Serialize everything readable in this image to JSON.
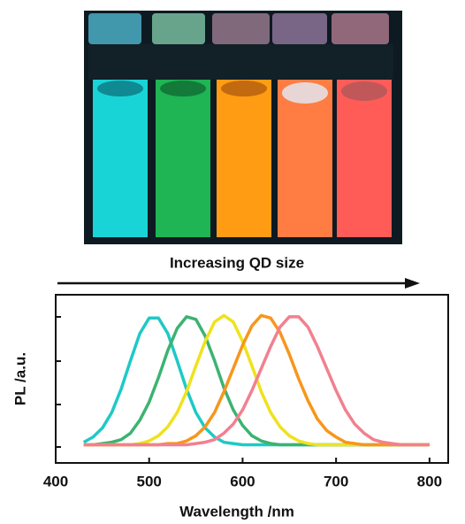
{
  "chart_data": {
    "type": "line",
    "annotation": "Increasing QD size",
    "x_label": "Wavelength /nm",
    "y_label": "PL /a.u.",
    "x": [
      430,
      440,
      450,
      460,
      470,
      480,
      490,
      500,
      510,
      520,
      530,
      540,
      550,
      560,
      570,
      580,
      590,
      600,
      610,
      620,
      630,
      640,
      650,
      660,
      670,
      680,
      690,
      700,
      710,
      720,
      730,
      740,
      750,
      760,
      770,
      780,
      790,
      800
    ],
    "series": [
      {
        "color": "#1fc9c6",
        "values": [
          0.02,
          0.06,
          0.13,
          0.25,
          0.43,
          0.65,
          0.86,
          0.98,
          0.98,
          0.86,
          0.65,
          0.43,
          0.25,
          0.13,
          0.06,
          0.02,
          0.01,
          0,
          0,
          0,
          0,
          0,
          0,
          0,
          0,
          0,
          0,
          0,
          0,
          0,
          0,
          0,
          0,
          0,
          0,
          0,
          0,
          0
        ]
      },
      {
        "color": "#3cb371",
        "values": [
          0,
          0,
          0.01,
          0.02,
          0.04,
          0.09,
          0.19,
          0.33,
          0.52,
          0.73,
          0.9,
          0.99,
          0.97,
          0.84,
          0.65,
          0.44,
          0.27,
          0.15,
          0.07,
          0.03,
          0.01,
          0,
          0,
          0,
          0,
          0,
          0,
          0,
          0,
          0,
          0,
          0,
          0,
          0,
          0,
          0,
          0,
          0
        ]
      },
      {
        "color": "#efe21e",
        "values": [
          0,
          0,
          0,
          0,
          0,
          0,
          0.01,
          0.03,
          0.07,
          0.14,
          0.25,
          0.41,
          0.61,
          0.8,
          0.95,
          1,
          0.95,
          0.8,
          0.61,
          0.41,
          0.25,
          0.14,
          0.07,
          0.03,
          0.01,
          0,
          0,
          0,
          0,
          0,
          0,
          0,
          0,
          0,
          0,
          0,
          0,
          0
        ]
      },
      {
        "color": "#f7961c",
        "values": [
          0,
          0,
          0,
          0,
          0,
          0,
          0,
          0,
          0,
          0.01,
          0.01,
          0.03,
          0.07,
          0.14,
          0.25,
          0.41,
          0.59,
          0.77,
          0.92,
          1.0,
          0.98,
          0.87,
          0.7,
          0.51,
          0.34,
          0.2,
          0.11,
          0.06,
          0.02,
          0.01,
          0,
          0,
          0,
          0,
          0,
          0,
          0,
          0
        ]
      },
      {
        "color": "#f2808f",
        "values": [
          0,
          0,
          0,
          0,
          0,
          0,
          0,
          0,
          0,
          0,
          0,
          0,
          0.01,
          0.02,
          0.04,
          0.09,
          0.16,
          0.27,
          0.42,
          0.59,
          0.76,
          0.91,
          0.99,
          0.99,
          0.91,
          0.76,
          0.59,
          0.42,
          0.27,
          0.16,
          0.09,
          0.04,
          0.02,
          0.01,
          0,
          0,
          0,
          0
        ]
      }
    ],
    "xlim": [
      400,
      820
    ],
    "ylim": [
      -0.14,
      1.16
    ],
    "xticks": [
      400,
      500,
      600,
      700,
      800
    ]
  }
}
